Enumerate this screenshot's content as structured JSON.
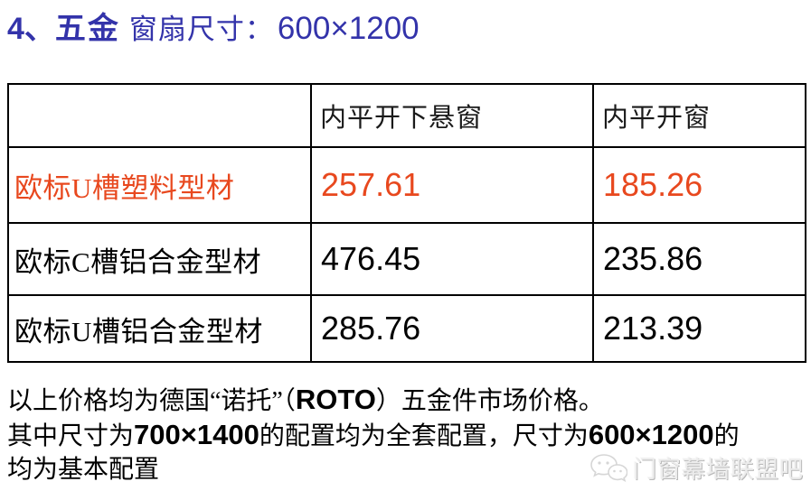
{
  "colors": {
    "title_blue": "#3333aa",
    "highlight_red": "#e8481e",
    "border_black": "#000000",
    "watermark_gray": "#ececec"
  },
  "title": {
    "number": "4、",
    "part_bold": "五金",
    "part_rest": "窗扇尺寸：",
    "size_value": "600×1200"
  },
  "table": {
    "columns": [
      "",
      "内平开下悬窗",
      "内平开窗"
    ],
    "rows": [
      {
        "label": "欧标U槽塑料型材",
        "values": [
          "257.61",
          "185.26"
        ],
        "highlight": true
      },
      {
        "label": "欧标C槽铝合金型材",
        "values": [
          "476.45",
          "235.86"
        ],
        "highlight": false
      },
      {
        "label": "欧标U槽铝合金型材",
        "values": [
          "285.76",
          "213.39"
        ],
        "highlight": false
      }
    ]
  },
  "footer": {
    "line1": [
      {
        "text": "以上价格均为德国“诺托”（"
      },
      {
        "text": "ROTO",
        "sans": true
      },
      {
        "text": "）五金件市场价格。"
      }
    ],
    "line2": [
      {
        "text": "其中尺寸为"
      },
      {
        "text": "700×1400",
        "sans": true
      },
      {
        "text": "的配置均为全套配置，尺寸为"
      },
      {
        "text": "600×1200",
        "sans": true
      },
      {
        "text": "的"
      }
    ],
    "line3": [
      {
        "text": "均为基本配置"
      }
    ]
  },
  "watermark": {
    "label": "门窗幕墙联盟吧",
    "icon": "wechat-chat-bubbles-icon"
  }
}
